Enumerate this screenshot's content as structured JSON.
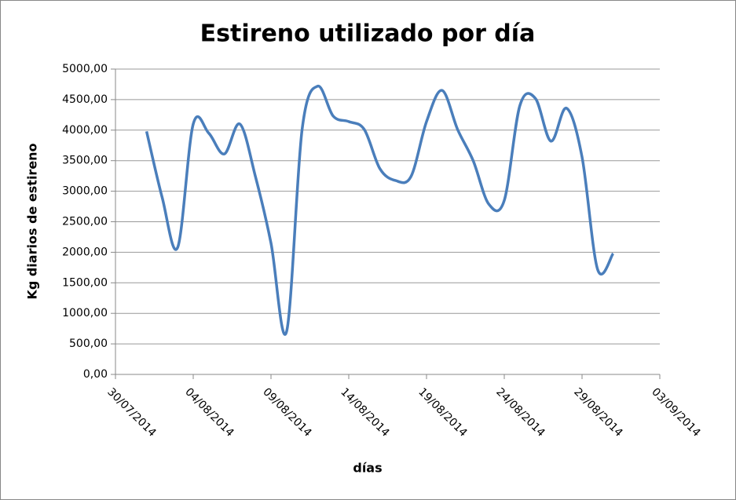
{
  "chart_data": {
    "type": "line",
    "title": "Estireno utilizado por día",
    "x_label": "días",
    "y_label": "Kg diarios de estireno",
    "x": [
      "01/08/2014",
      "02/08/2014",
      "03/08/2014",
      "04/08/2014",
      "05/08/2014",
      "06/08/2014",
      "07/08/2014",
      "08/08/2014",
      "09/08/2014",
      "10/08/2014",
      "11/08/2014",
      "12/08/2014",
      "13/08/2014",
      "14/08/2014",
      "15/08/2014",
      "16/08/2014",
      "17/08/2014",
      "18/08/2014",
      "19/08/2014",
      "20/08/2014",
      "21/08/2014",
      "22/08/2014",
      "23/08/2014",
      "24/08/2014",
      "25/08/2014",
      "26/08/2014",
      "27/08/2014",
      "28/08/2014",
      "29/08/2014",
      "30/08/2014",
      "31/08/2014"
    ],
    "series": [
      {
        "name": "Estireno",
        "color": "#4a7ebb",
        "values": [
          3980,
          2900,
          2080,
          4100,
          3950,
          3610,
          4100,
          3240,
          2150,
          700,
          4010,
          4720,
          4230,
          4140,
          4010,
          3370,
          3175,
          3240,
          4140,
          4650,
          4010,
          3500,
          2790,
          2850,
          4400,
          4520,
          3820,
          4360,
          3560,
          1720,
          1980
        ]
      }
    ],
    "xlim": [
      "30/07/2014",
      "03/09/2014"
    ],
    "xticks": [
      "30/07/2014",
      "04/08/2014",
      "09/08/2014",
      "14/08/2014",
      "19/08/2014",
      "24/08/2014",
      "29/08/2014",
      "03/09/2014"
    ],
    "ylim": [
      0,
      5000
    ],
    "yticks": [
      {
        "value": 0,
        "label": "0,00"
      },
      {
        "value": 500,
        "label": "500,00"
      },
      {
        "value": 1000,
        "label": "1000,00"
      },
      {
        "value": 1500,
        "label": "1500,00"
      },
      {
        "value": 2000,
        "label": "2000,00"
      },
      {
        "value": 2500,
        "label": "2500,00"
      },
      {
        "value": 3000,
        "label": "3000,00"
      },
      {
        "value": 3500,
        "label": "3500,00"
      },
      {
        "value": 4000,
        "label": "4000,00"
      },
      {
        "value": 4500,
        "label": "4500,00"
      },
      {
        "value": 5000,
        "label": "5000,00"
      }
    ],
    "grid": true,
    "smooth": true
  }
}
